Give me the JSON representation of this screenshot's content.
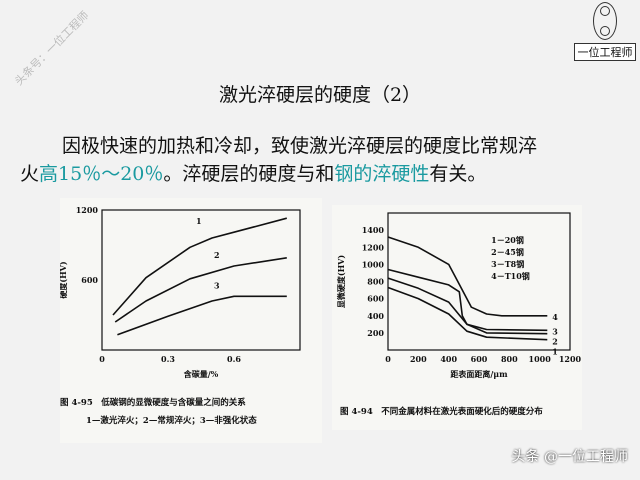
{
  "watermark": "头条号：一位工程师",
  "logo": {
    "name": "一位工程师"
  },
  "title": "激光淬硬层的硬度（2）",
  "paragraph": {
    "line1": "因极快速的加热和冷却，致使激光淬硬层的硬度比常规淬",
    "line2_a": "火",
    "line2_hl1": "高15％～20％",
    "line2_b": "。淬硬层的硬度与和",
    "line2_hl2": "钢的淬硬性",
    "line2_c": "有关。"
  },
  "highlight_color": "#1a9aa0",
  "chart_data": [
    {
      "type": "line",
      "ylabel": "硬度(HV)",
      "xlabel": "含碳量/%",
      "xlim": [
        0,
        0.9
      ],
      "ylim": [
        0,
        1200
      ],
      "xticks": [
        "0",
        "0.3",
        "0.6"
      ],
      "yticks": [
        "600",
        "1200"
      ],
      "series": [
        {
          "name": "1",
          "x": [
            0.05,
            0.2,
            0.4,
            0.5,
            0.6,
            0.84
          ],
          "y": [
            300,
            620,
            880,
            960,
            1010,
            1130
          ]
        },
        {
          "name": "2",
          "x": [
            0.06,
            0.2,
            0.4,
            0.6,
            0.84
          ],
          "y": [
            240,
            420,
            610,
            720,
            790
          ]
        },
        {
          "name": "3",
          "x": [
            0.07,
            0.3,
            0.5,
            0.6,
            0.84
          ],
          "y": [
            130,
            290,
            420,
            460,
            460
          ]
        }
      ],
      "caption": "图 4-95　低碳钢的显微硬度与含碳量之间的关系",
      "caption2": "1—激光淬火；2—常规淬火；3—非强化状态"
    },
    {
      "type": "line",
      "ylabel": "显微硬度(HV)",
      "xlabel": "距表面距离/μm",
      "xlim": [
        0,
        1200
      ],
      "ylim": [
        0,
        1600
      ],
      "xticks": [
        "0",
        "200",
        "400",
        "600",
        "800",
        "1000",
        "1200"
      ],
      "yticks": [
        "200",
        "400",
        "600",
        "800",
        "1000",
        "1200",
        "1400"
      ],
      "legend": [
        "1－20钢",
        "2－45钢",
        "3－T8钢",
        "4－T10钢"
      ],
      "series": [
        {
          "name": "4",
          "x": [
            0,
            200,
            400,
            460,
            550,
            650,
            750,
            1050
          ],
          "y": [
            1320,
            1200,
            1000,
            800,
            500,
            420,
            400,
            400
          ]
        },
        {
          "name": "3",
          "x": [
            0,
            200,
            400,
            470,
            490,
            520,
            650,
            1050
          ],
          "y": [
            940,
            850,
            760,
            680,
            400,
            300,
            240,
            230
          ]
        },
        {
          "name": "2",
          "x": [
            0,
            200,
            400,
            520,
            650,
            1050
          ],
          "y": [
            840,
            720,
            560,
            300,
            200,
            190
          ]
        },
        {
          "name": "1",
          "x": [
            0,
            200,
            400,
            520,
            650,
            1050
          ],
          "y": [
            730,
            600,
            420,
            220,
            150,
            120
          ]
        }
      ],
      "caption": "图 4-94　不同金属材料在激光表面硬化后的硬度分布"
    }
  ],
  "footer": "头条 @一位工程师"
}
